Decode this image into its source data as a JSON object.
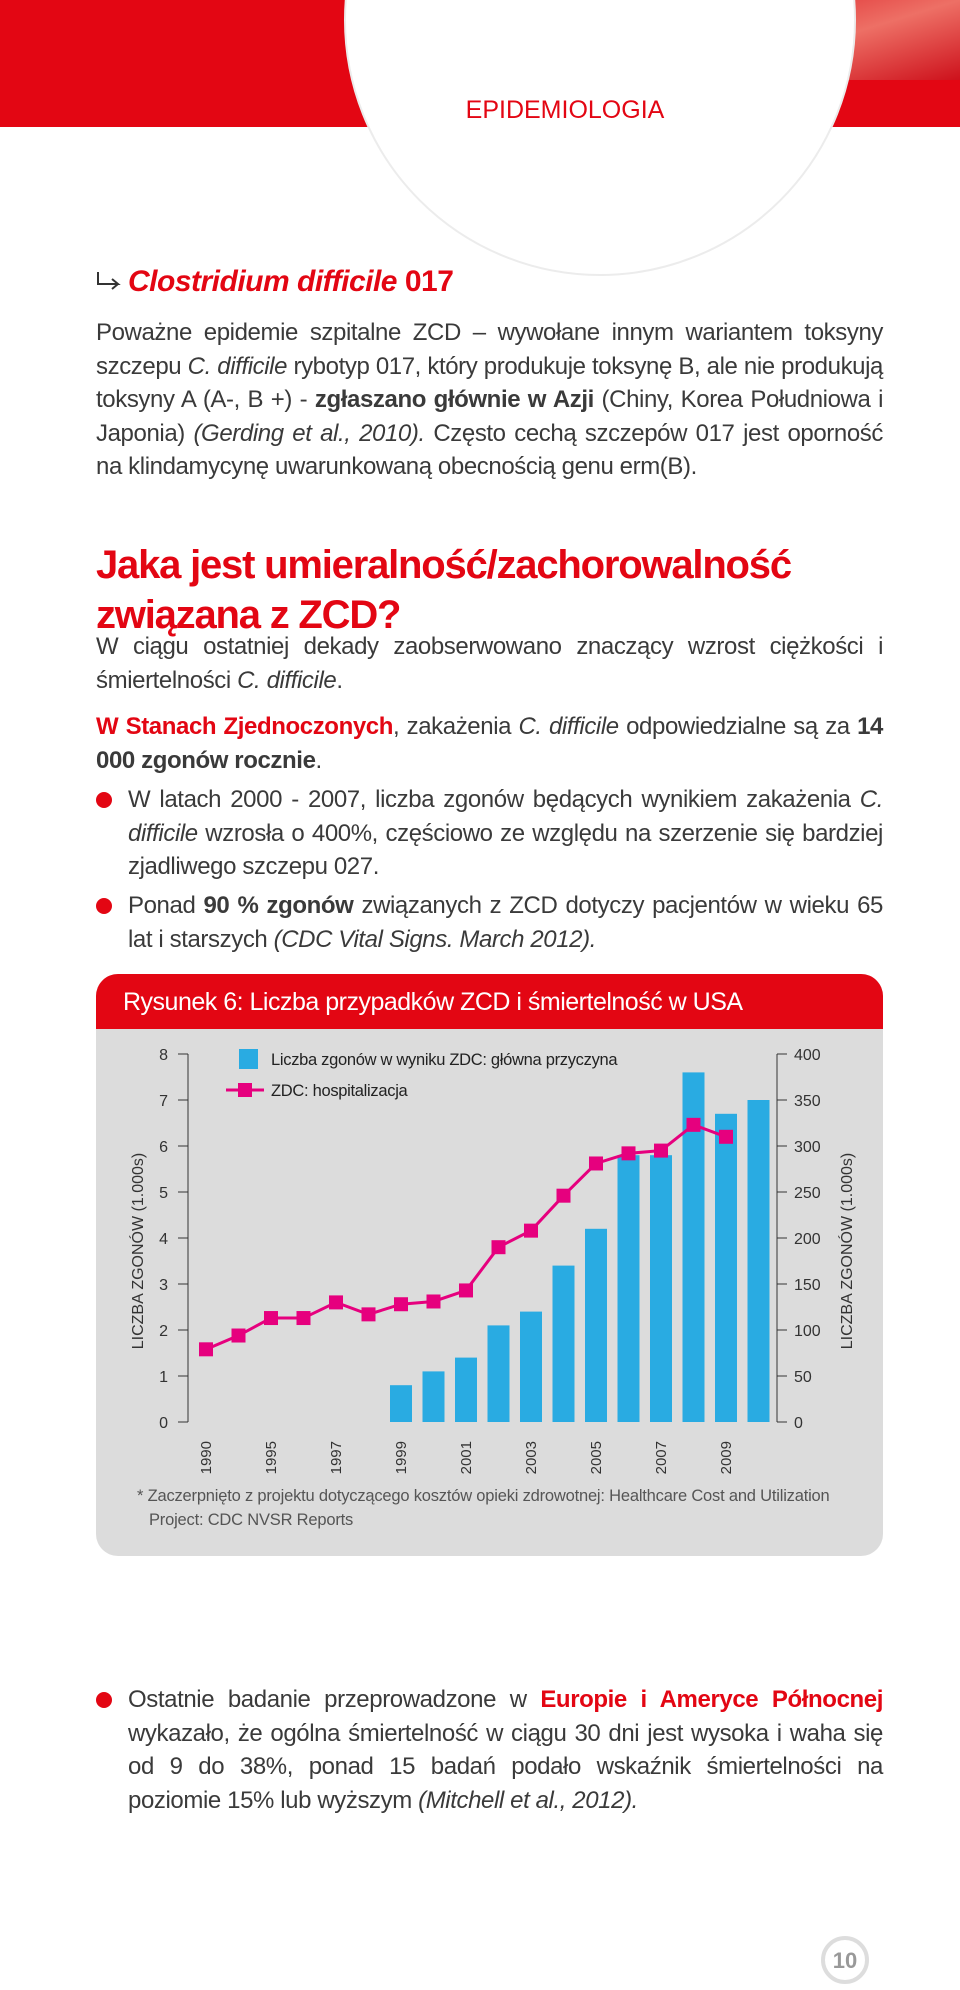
{
  "header": {
    "section": "EPIDEMIOLOGIA"
  },
  "section1": {
    "title": [
      "Clostridium difficile",
      " 017"
    ],
    "text": [
      "Poważne epidemie szpitalne ZCD – wywołane  innym wariantem toksyny szczepu ",
      "C. difficile",
      " rybotyp 017, który produkuje toksynę B, ale nie produkują toksyny A (A-, B +) - ",
      "zgłaszano głównie w Azji",
      " (Chiny, Korea Południowa i Japonia) ",
      "(Gerding et al., 2010).",
      " Często cechą szczepów 017 jest oporność na klindamycynę uwarunkowaną obecnością genu erm(B)."
    ]
  },
  "section2": {
    "title": "Jaka jest umieralność/zachorowalność związana z ZCD?",
    "paragraphs": [
      [
        "W ciągu ostatniej dekady zaobserwowano znaczący wzrost ciężkości i śmiertelności ",
        "C. difficile",
        "."
      ],
      [
        "W Stanach Zjednoczonych",
        ", zakażenia ",
        "C. difficile",
        " odpowiedzialne są za ",
        "14 000 zgonów rocznie",
        "."
      ]
    ],
    "bullets": [
      [
        "W latach 2000 - 2007, liczba zgonów będących wynikiem zakażenia ",
        "C. difficile",
        " wzrosła o 400%, częściowo ze względu na szerzenie  się bardziej zjadliwego szczepu 027."
      ],
      [
        "Ponad ",
        "90 % zgonów",
        " związanych z ZCD dotyczy pacjentów w wieku 65 lat i starszych ",
        "(CDC Vital Signs. March 2012)."
      ]
    ]
  },
  "chart_data": {
    "type": "bar-line",
    "title": "Rysunek 6: Liczba przypadków ZCD i śmiertelność w USA",
    "ylabel": "LICZBA ZGONÓW (1.000s)",
    "y2label": "LICZBA ZGONÓW (1.000s)",
    "categories": [
      "1990",
      null,
      "1995",
      null,
      "1997",
      null,
      "1999",
      null,
      "2001",
      null,
      "2003",
      null,
      "2005",
      null,
      "2007",
      null,
      "2009",
      null
    ],
    "series": [
      {
        "name": "Liczba zgonów w wyniku ZDC: główna przyczyna",
        "color": "#29abe2",
        "type": "bar",
        "values": [
          null,
          null,
          null,
          null,
          null,
          null,
          0.8,
          1.1,
          1.4,
          2.1,
          2.4,
          3.4,
          4.2,
          5.8,
          5.8,
          7.6,
          6.7,
          7.0
        ]
      },
      {
        "name": "ZDC: hospitalizacja",
        "color": "#e6007e",
        "type": "line",
        "axis": "y2",
        "values": [
          79,
          94,
          113,
          113,
          130,
          117,
          128,
          131,
          143,
          190,
          208,
          246,
          281,
          292,
          295,
          323,
          310,
          null
        ]
      }
    ],
    "ylim": [
      0,
      8
    ],
    "yticks": [
      0,
      1,
      2,
      3,
      4,
      5,
      6,
      7,
      8
    ],
    "y2lim": [
      0,
      400
    ],
    "y2ticks": [
      0,
      50,
      100,
      150,
      200,
      250,
      300,
      350,
      400
    ],
    "source": "* Zaczerpnięto z projektu dotyczącego kosztów opieki zdrowotnej: Healthcare Cost and Utilization Project: CDC NVSR Reports"
  },
  "closing": {
    "bullets": [
      [
        "Ostatnie badanie przeprowadzone w ",
        "Europie i Ameryce Północnej",
        " wykazało, że ogólna śmiertelność w ciągu 30 dni jest wysoka i waha się od 9 do 38%,  ponad 15 badań podało wskaźnik śmiertelności na poziomie 15% lub wyższym ",
        "(Mitchell et al., 2012)."
      ]
    ]
  },
  "page_number": 10
}
